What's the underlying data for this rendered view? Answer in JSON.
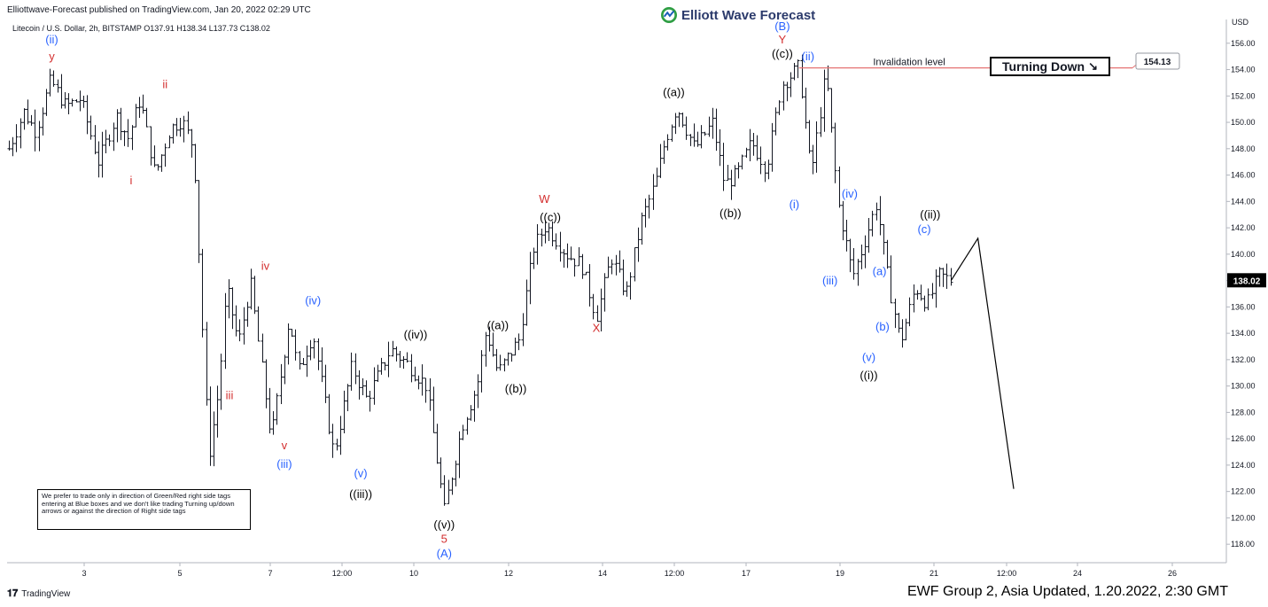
{
  "header": {
    "published": "Elliottwave-Forecast published on TradingView.com, Jan 20, 2022 02:29 UTC",
    "symbol_line": "Litecoin / U.S. Dollar, 2h, BITSTAMP  O137.91  H138.34  L137.73  C138.02",
    "brand": "Elliott Wave Forecast",
    "currency": "USD"
  },
  "footer": {
    "tv_logo": "TradingView",
    "note": "EWF Group 2, Asia Updated, 1.20.2022, 2:30 GMT"
  },
  "disclaimer": "We prefer to trade only in direction of Green/Red right side tags entering at Blue boxes and we don't like trading Turning up/down arrows or against the direction of Right side tags",
  "turning_box": {
    "label": "Turning Down",
    "arrow": "↘"
  },
  "colors": {
    "blue": "#2962ff",
    "red": "#d32f2f",
    "black": "#000000",
    "invalidation": "#e57373",
    "price_label_bg": "#000000",
    "brand": "#2b3a6b"
  },
  "chart_data": {
    "type": "ohlc",
    "title": "Litecoin / U.S. Dollar, 2h, BITSTAMP",
    "ylim": [
      116.6,
      157.8
    ],
    "y_ticks": [
      118,
      120,
      122,
      124,
      126,
      128,
      130,
      132,
      134,
      136,
      138,
      140,
      142,
      144,
      146,
      148,
      150,
      152,
      154,
      156
    ],
    "x_ticks": [
      "3",
      "5",
      "7",
      "12:00",
      "10",
      "12",
      "14",
      "12:00",
      "17",
      "19",
      "21",
      "12:00",
      "24",
      "26"
    ],
    "last_price": 138.02,
    "price_path": [
      [
        0.0,
        148.0
      ],
      [
        0.25,
        150.8
      ],
      [
        0.45,
        149.3
      ],
      [
        0.7,
        153.2
      ],
      [
        0.95,
        151.2
      ],
      [
        1.2,
        151.8
      ],
      [
        1.5,
        147.0
      ],
      [
        1.8,
        150.5
      ],
      [
        2.0,
        148.8
      ],
      [
        2.2,
        151.8
      ],
      [
        2.45,
        146.0
      ],
      [
        2.7,
        149.5
      ],
      [
        2.9,
        150.2
      ],
      [
        3.1,
        148.0
      ],
      [
        3.35,
        124.5
      ],
      [
        3.52,
        129.8
      ],
      [
        3.65,
        137.5
      ],
      [
        3.85,
        133.2
      ],
      [
        4.05,
        137.8
      ],
      [
        4.4,
        126.0
      ],
      [
        4.7,
        135.2
      ],
      [
        4.85,
        131.0
      ],
      [
        5.1,
        134.0
      ],
      [
        5.45,
        124.8
      ],
      [
        5.75,
        131.5
      ],
      [
        6.0,
        129.0
      ],
      [
        6.4,
        132.8
      ],
      [
        6.7,
        131.6
      ],
      [
        7.0,
        130.0
      ],
      [
        7.3,
        120.5
      ],
      [
        7.6,
        127.0
      ],
      [
        7.85,
        130.0
      ],
      [
        8.0,
        134.2
      ],
      [
        8.2,
        131.0
      ],
      [
        8.55,
        133.5
      ],
      [
        8.8,
        140.5
      ],
      [
        9.0,
        142.2
      ],
      [
        9.35,
        140.0
      ],
      [
        9.6,
        139.2
      ],
      [
        9.85,
        135.2
      ],
      [
        10.1,
        139.8
      ],
      [
        10.35,
        137.0
      ],
      [
        10.6,
        142.5
      ],
      [
        10.85,
        145.5
      ],
      [
        11.0,
        148.5
      ],
      [
        11.2,
        151.2
      ],
      [
        11.5,
        148.0
      ],
      [
        11.8,
        150.0
      ],
      [
        12.0,
        145.3
      ],
      [
        12.2,
        146.0
      ],
      [
        12.45,
        148.5
      ],
      [
        12.7,
        146.5
      ],
      [
        12.95,
        152.8
      ],
      [
        13.25,
        154.2
      ],
      [
        13.45,
        146.0
      ],
      [
        13.7,
        153.8
      ],
      [
        13.9,
        144.0
      ],
      [
        14.15,
        138.3
      ],
      [
        14.35,
        141.0
      ],
      [
        14.55,
        143.9
      ],
      [
        14.75,
        137.8
      ],
      [
        14.95,
        133.3
      ],
      [
        15.2,
        137.5
      ],
      [
        15.4,
        136.2
      ],
      [
        15.6,
        138.4
      ],
      [
        15.8,
        138.02
      ]
    ],
    "projection": [
      [
        15.8,
        138.0
      ],
      [
        16.25,
        141.2
      ],
      [
        16.85,
        122.2
      ]
    ],
    "invalidation": {
      "label": "Invalidation level",
      "value": 154.13,
      "from_x": 13.25
    },
    "waves": [
      {
        "text": "(ii)",
        "color": "blue",
        "x": 0.72,
        "y": 156.0
      },
      {
        "text": "y",
        "color": "red",
        "x": 0.72,
        "y": 154.7
      },
      {
        "text": "ii",
        "color": "red",
        "x": 2.62,
        "y": 152.6
      },
      {
        "text": "i",
        "color": "red",
        "x": 2.05,
        "y": 145.3
      },
      {
        "text": "iv",
        "color": "red",
        "x": 4.3,
        "y": 138.8
      },
      {
        "text": "iii",
        "color": "red",
        "x": 3.7,
        "y": 129.0
      },
      {
        "text": "(iv)",
        "color": "blue",
        "x": 5.1,
        "y": 136.2
      },
      {
        "text": "v",
        "color": "red",
        "x": 4.62,
        "y": 125.2
      },
      {
        "text": "(iii)",
        "color": "blue",
        "x": 4.62,
        "y": 123.8
      },
      {
        "text": "(v)",
        "color": "blue",
        "x": 5.9,
        "y": 123.1
      },
      {
        "text": "((iii))",
        "color": "black",
        "x": 5.9,
        "y": 121.5
      },
      {
        "text": "((iv))",
        "color": "black",
        "x": 6.82,
        "y": 133.6
      },
      {
        "text": "((v))",
        "color": "black",
        "x": 7.3,
        "y": 119.2
      },
      {
        "text": "5",
        "color": "red",
        "x": 7.3,
        "y": 118.1
      },
      {
        "text": "(A)",
        "color": "blue",
        "x": 7.3,
        "y": 117.0
      },
      {
        "text": "((a))",
        "color": "black",
        "x": 8.2,
        "y": 134.3
      },
      {
        "text": "((b))",
        "color": "black",
        "x": 8.5,
        "y": 129.5
      },
      {
        "text": "W",
        "color": "red",
        "x": 8.98,
        "y": 143.9
      },
      {
        "text": "((c))",
        "color": "black",
        "x": 9.08,
        "y": 142.5
      },
      {
        "text": "X",
        "color": "red",
        "x": 9.85,
        "y": 134.1
      },
      {
        "text": "((a))",
        "color": "black",
        "x": 11.15,
        "y": 152.0
      },
      {
        "text": "((b))",
        "color": "black",
        "x": 12.1,
        "y": 142.8
      },
      {
        "text": "(B)",
        "color": "blue",
        "x": 12.97,
        "y": 157.0
      },
      {
        "text": "Y",
        "color": "red",
        "x": 12.97,
        "y": 156.0
      },
      {
        "text": "((c))",
        "color": "black",
        "x": 12.97,
        "y": 154.9
      },
      {
        "text": "(ii)",
        "color": "blue",
        "x": 13.4,
        "y": 154.7
      },
      {
        "text": "(i)",
        "color": "blue",
        "x": 13.17,
        "y": 143.5
      },
      {
        "text": "(iv)",
        "color": "blue",
        "x": 14.1,
        "y": 144.3
      },
      {
        "text": "(iii)",
        "color": "blue",
        "x": 13.77,
        "y": 137.7
      },
      {
        "text": "(a)",
        "color": "blue",
        "x": 14.6,
        "y": 138.4
      },
      {
        "text": "(b)",
        "color": "blue",
        "x": 14.65,
        "y": 134.2
      },
      {
        "text": "(v)",
        "color": "blue",
        "x": 14.42,
        "y": 131.9
      },
      {
        "text": "((i))",
        "color": "black",
        "x": 14.42,
        "y": 130.5
      },
      {
        "text": "((ii))",
        "color": "black",
        "x": 15.45,
        "y": 142.7
      },
      {
        "text": "(c)",
        "color": "blue",
        "x": 15.35,
        "y": 141.6
      }
    ]
  }
}
